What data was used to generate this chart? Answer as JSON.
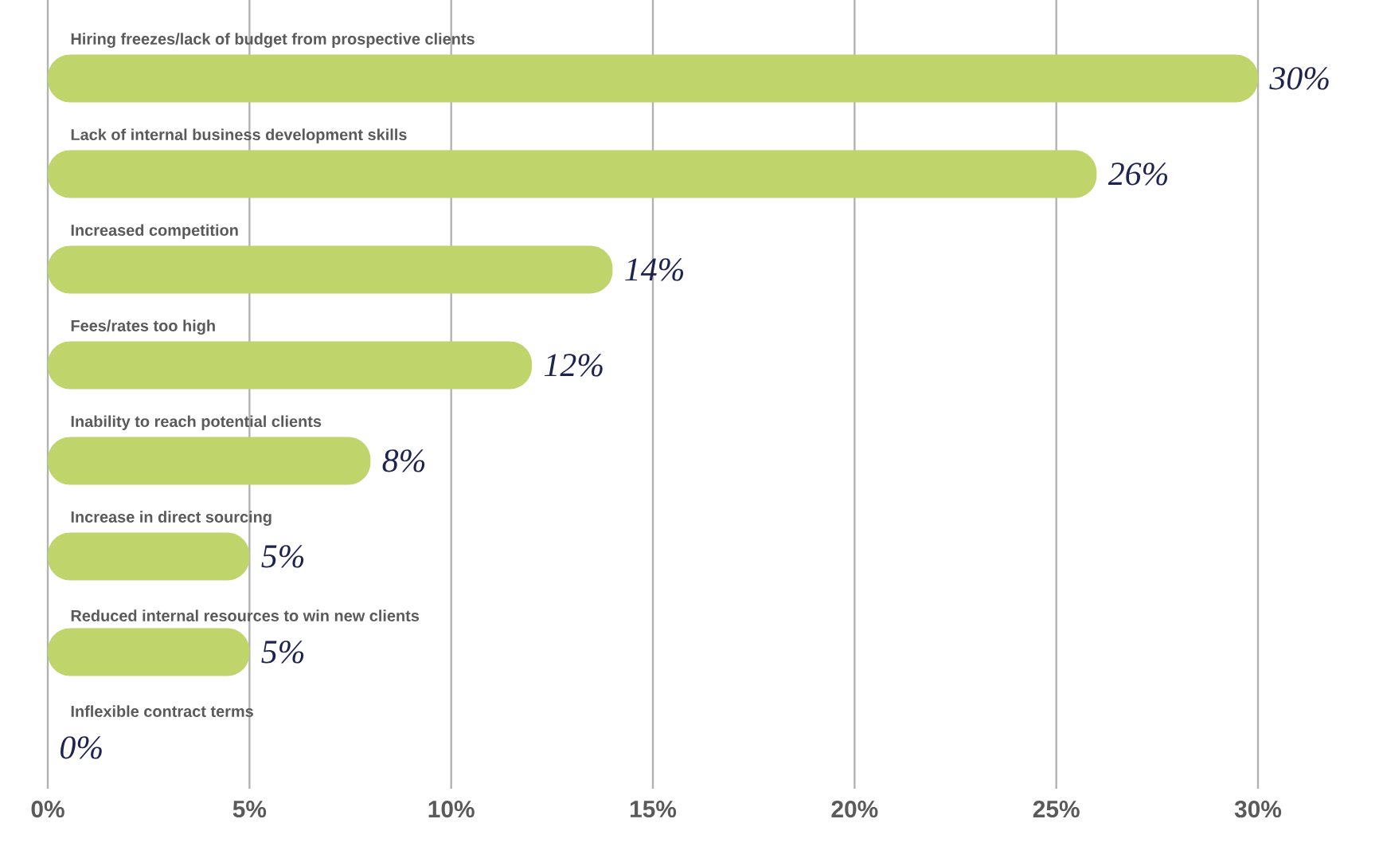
{
  "chart_data": {
    "type": "bar",
    "orientation": "horizontal",
    "categories": [
      "Hiring freezes/lack of budget from prospective clients",
      "Lack of internal business development skills",
      "Increased competition",
      "Fees/rates too high",
      "Inability to reach potential clients",
      "Increase in direct sourcing",
      "Reduced internal resources to win new clients",
      "Inflexible contract terms"
    ],
    "values": [
      30,
      26,
      14,
      12,
      8,
      5,
      5,
      0
    ],
    "value_labels": [
      "30%",
      "26%",
      "14%",
      "12%",
      "8%",
      "5%",
      "5%",
      "0%"
    ],
    "color": "#bfd46b",
    "xlim": [
      0,
      30
    ],
    "xticks": [
      {
        "value": 0,
        "label": "0%"
      },
      {
        "value": 5,
        "label": "5%"
      },
      {
        "value": 10,
        "label": "10%"
      },
      {
        "value": 15,
        "label": "15%"
      },
      {
        "value": 20,
        "label": "20%"
      },
      {
        "value": 25,
        "label": "25%"
      },
      {
        "value": 30,
        "label": "30%"
      }
    ],
    "grid": "x"
  }
}
